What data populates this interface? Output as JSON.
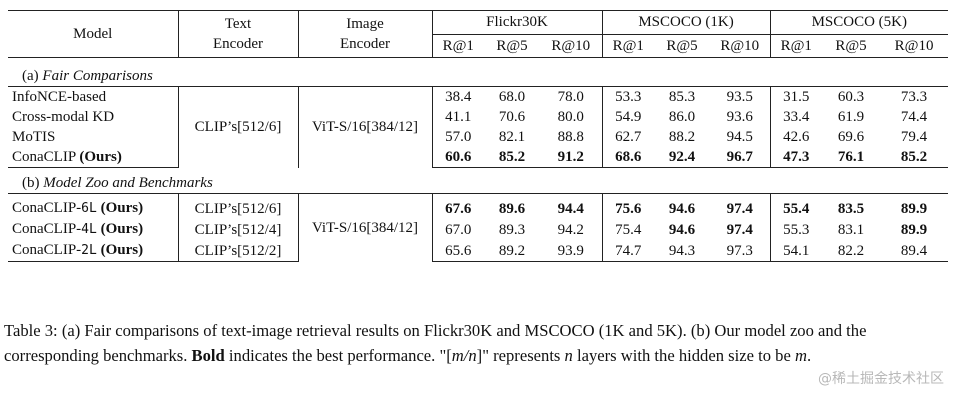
{
  "headers": {
    "model": "Model",
    "text_encoder": [
      "Text",
      "Encoder"
    ],
    "image_encoder": [
      "Image",
      "Encoder"
    ],
    "groups": [
      "Flickr30K",
      "MSCOCO (1K)",
      "MSCOCO (5K)"
    ],
    "metrics": [
      "R@1",
      "R@5",
      "R@10"
    ]
  },
  "sections": [
    {
      "prefix": "(a)",
      "title": "Fair Comparisons",
      "text_encoder": "CLIP’s[512/6]",
      "image_encoder": "ViT-S/16[384/12]",
      "rows": [
        {
          "model": "InfoNCE-based",
          "suffix": "",
          "ours": "",
          "bold_model": false,
          "values": [
            "38.4",
            "68.0",
            "78.0",
            "53.3",
            "85.3",
            "93.5",
            "31.5",
            "60.3",
            "73.3"
          ],
          "bold": [
            false,
            false,
            false,
            false,
            false,
            false,
            false,
            false,
            false
          ]
        },
        {
          "model": "Cross-modal KD",
          "suffix": "",
          "ours": "",
          "bold_model": false,
          "values": [
            "41.1",
            "70.6",
            "80.0",
            "54.9",
            "86.0",
            "93.6",
            "33.4",
            "61.9",
            "74.4"
          ],
          "bold": [
            false,
            false,
            false,
            false,
            false,
            false,
            false,
            false,
            false
          ]
        },
        {
          "model": "MoTIS",
          "suffix": "",
          "ours": "",
          "bold_model": false,
          "values": [
            "57.0",
            "82.1",
            "88.8",
            "62.7",
            "88.2",
            "94.5",
            "42.6",
            "69.6",
            "79.4"
          ],
          "bold": [
            false,
            false,
            false,
            false,
            false,
            false,
            false,
            false,
            false
          ]
        },
        {
          "model": "ConaCLIP",
          "suffix": "",
          "ours": "(Ours)",
          "bold_model": false,
          "values": [
            "60.6",
            "85.2",
            "91.2",
            "68.6",
            "92.4",
            "96.7",
            "47.3",
            "76.1",
            "85.2"
          ],
          "bold": [
            true,
            true,
            true,
            true,
            true,
            true,
            true,
            true,
            true
          ]
        }
      ]
    },
    {
      "prefix": "(b)",
      "title": "Model Zoo and Benchmarks",
      "image_encoder": "ViT-S/16[384/12]",
      "rows": [
        {
          "model": "ConaCLIP-",
          "suffix": "6L",
          "ours": "(Ours)",
          "text_encoder": "CLIP’s[512/6]",
          "values": [
            "67.6",
            "89.6",
            "94.4",
            "75.6",
            "94.6",
            "97.4",
            "55.4",
            "83.5",
            "89.9"
          ],
          "bold": [
            true,
            true,
            true,
            true,
            true,
            true,
            true,
            true,
            true
          ]
        },
        {
          "model": "ConaCLIP-",
          "suffix": "4L",
          "ours": "(Ours)",
          "text_encoder": "CLIP’s[512/4]",
          "values": [
            "67.0",
            "89.3",
            "94.2",
            "75.4",
            "94.6",
            "97.4",
            "55.3",
            "83.1",
            "89.9"
          ],
          "bold": [
            false,
            false,
            false,
            false,
            true,
            true,
            false,
            false,
            true
          ]
        },
        {
          "model": "ConaCLIP-",
          "suffix": "2L",
          "ours": "(Ours)",
          "text_encoder": "CLIP’s[512/2]",
          "values": [
            "65.6",
            "89.2",
            "93.9",
            "74.7",
            "94.3",
            "97.3",
            "54.1",
            "82.2",
            "89.4"
          ],
          "bold": [
            false,
            false,
            false,
            false,
            false,
            false,
            false,
            false,
            false
          ]
        }
      ]
    }
  ],
  "caption": {
    "label": "Table 3:",
    "part1": " (a) Fair comparisons of text-image retrieval results on Flickr30K and MSCOCO (1K and 5K). (b) Our model zoo and the corresponding benchmarks. ",
    "bold_word": "Bold",
    "part2": " indicates the best performance. \"[",
    "m_over_n": "m/n",
    "part3": "]\" represents ",
    "n": "n",
    "part4": " layers with the hidden size to be ",
    "m": "m",
    "part5": "."
  },
  "watermark": "@稀土掘金技术社区"
}
